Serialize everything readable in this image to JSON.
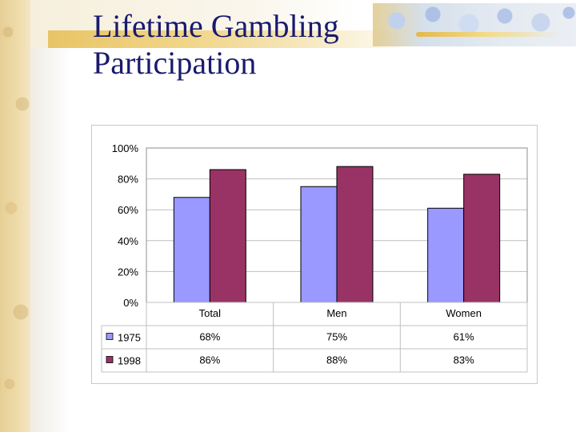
{
  "slide": {
    "title_line1": "Lifetime Gambling",
    "title_line2": "Participation"
  },
  "chart_data": {
    "type": "bar",
    "categories": [
      "Total",
      "Men",
      "Women"
    ],
    "series": [
      {
        "name": "1975",
        "values": [
          68,
          75,
          61
        ],
        "labels": [
          "68%",
          "75%",
          "61%"
        ],
        "color": "#9999ff"
      },
      {
        "name": "1998",
        "values": [
          86,
          88,
          83
        ],
        "labels": [
          "86%",
          "88%",
          "83%"
        ],
        "color": "#993366"
      }
    ],
    "ylim": [
      0,
      100
    ],
    "yticks": [
      "0%",
      "20%",
      "40%",
      "60%",
      "80%",
      "100%"
    ],
    "grid": true,
    "legend": "data-table",
    "title": "",
    "xlabel": "",
    "ylabel": ""
  }
}
